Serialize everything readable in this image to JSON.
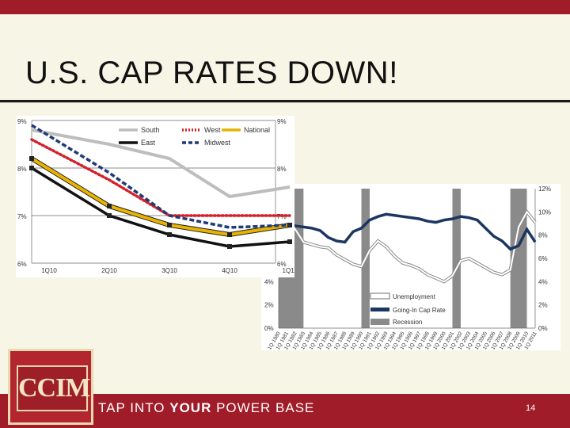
{
  "slide": {
    "title": "U.S. CAP RATES DOWN!",
    "tagline_pre": "TAP INTO ",
    "tagline_bold": "YOUR",
    "tagline_post": " POWER BASE",
    "page_number": "14",
    "logo_text": "CCIM",
    "colors": {
      "brand_red": "#a01c28",
      "background": "#f7f5e6"
    }
  },
  "chart_data": [
    {
      "type": "line",
      "categories": [
        "1Q10",
        "2Q10",
        "3Q10",
        "4Q10",
        "1Q11"
      ],
      "y_ticks_left": [
        "9%",
        "8%",
        "7%",
        "6%"
      ],
      "y_ticks_right": [
        "9%",
        "8%",
        "7%",
        "6%"
      ],
      "ylim": [
        6,
        9
      ],
      "legend": [
        "South",
        "West",
        "National",
        "East",
        "Midwest"
      ],
      "legend_position": "top",
      "series": [
        {
          "name": "South",
          "color": "#bdbdbd",
          "values": [
            8.8,
            8.5,
            8.2,
            7.4,
            7.6
          ]
        },
        {
          "name": "West",
          "color": "#d4202b",
          "values": [
            8.6,
            7.75,
            7.0,
            7.0,
            7.0
          ]
        },
        {
          "name": "National",
          "color": "#e8b400",
          "values": [
            8.2,
            7.2,
            6.8,
            6.6,
            6.8
          ]
        },
        {
          "name": "East",
          "color": "#111111",
          "values": [
            8.0,
            7.0,
            6.6,
            6.35,
            6.45
          ]
        },
        {
          "name": "Midwest",
          "color": "#1e3a78",
          "values": [
            8.9,
            7.9,
            7.0,
            6.75,
            6.8
          ]
        }
      ]
    },
    {
      "type": "line",
      "y_ticks_left": [
        "4%",
        "2%",
        "0%"
      ],
      "y_ticks_right": [
        "12%",
        "10%",
        "8%",
        "6%",
        "4%",
        "2%",
        "0%"
      ],
      "ylim": [
        0,
        12
      ],
      "x_labels": [
        "1Q 1980",
        "1Q 1981",
        "1Q 1982",
        "1Q 1983",
        "1Q 1984",
        "1Q 1985",
        "1Q 1986",
        "1Q 1987",
        "1Q 1988",
        "1Q 1989",
        "1Q 1990",
        "1Q 1991",
        "1Q 1992",
        "1Q 1993",
        "1Q 1994",
        "1Q 1995",
        "1Q 1996",
        "1Q 1997",
        "1Q 1998",
        "1Q 1999",
        "1Q 2000",
        "1Q 2001",
        "1Q 2002",
        "1Q 2003",
        "1Q 2004",
        "1Q 2005",
        "1Q 2006",
        "1Q 2007",
        "1Q 2008",
        "1Q 2009",
        "1Q 2010",
        "1Q 2011"
      ],
      "legend": [
        "Unemployment",
        "Going-In Cap Rate",
        "Recession"
      ],
      "legend_position": "bottom-left",
      "series": [
        {
          "name": "Unemployment",
          "color": "#d0d0d0",
          "values": [
            10.2,
            9.8,
            8.5,
            7.4,
            7.2,
            7.0,
            6.9,
            6.3,
            5.9,
            5.5,
            5.3,
            6.7,
            7.5,
            7.0,
            6.2,
            5.6,
            5.4,
            5.1,
            4.6,
            4.3,
            4.0,
            4.5,
            5.8,
            6.0,
            5.6,
            5.2,
            4.8,
            4.6,
            5.0,
            8.7,
            10.0,
            9.1
          ]
        },
        {
          "name": "Going-In Cap Rate",
          "color": "#1b3660",
          "values": [
            9.5,
            9.0,
            8.8,
            8.7,
            8.6,
            8.4,
            7.8,
            7.5,
            7.4,
            8.3,
            8.6,
            9.3,
            9.6,
            9.8,
            9.7,
            9.6,
            9.5,
            9.4,
            9.2,
            9.1,
            9.3,
            9.4,
            9.6,
            9.5,
            9.3,
            8.6,
            7.9,
            7.5,
            6.8,
            7.1,
            8.5,
            7.4
          ]
        },
        {
          "name": "Recession",
          "color": "#808080",
          "values": []
        }
      ]
    }
  ]
}
